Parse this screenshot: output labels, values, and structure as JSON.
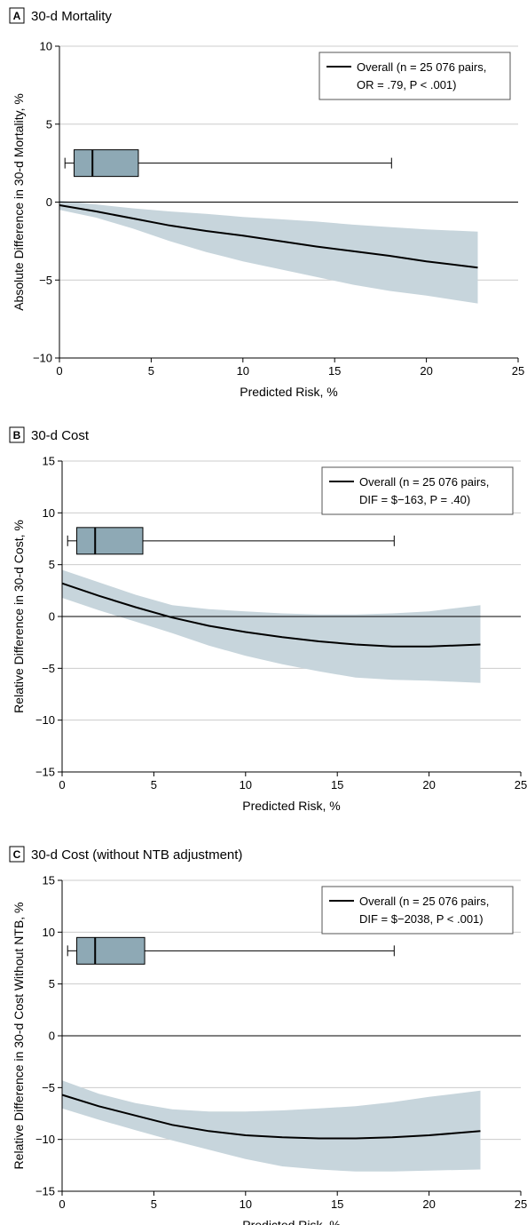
{
  "colors": {
    "band": "#c7d5dc",
    "box": "#8ea9b5",
    "line": "#000000",
    "grid": "#cccccc"
  },
  "chart_data": [
    {
      "type": "line",
      "panel_letter": "A",
      "title": "30-d Mortality",
      "xlabel": "Predicted Risk, %",
      "ylabel": "Absolute Difference in 30-d Mortality, %",
      "xlim": [
        0,
        25
      ],
      "ylim": [
        -10,
        10
      ],
      "xticks": [
        0,
        5,
        10,
        15,
        20,
        25
      ],
      "yticks": [
        -10,
        -5,
        0,
        5,
        10
      ],
      "ytick_labels": [
        "−10",
        "−5",
        "0",
        "5",
        "10"
      ],
      "grid": "horizontal",
      "reference_line": 0,
      "legend": {
        "position": "top-right",
        "lines": [
          "Overall (n = 25 076 pairs,",
          "OR = .79, P < .001)"
        ]
      },
      "series": [
        {
          "x": [
            0,
            2,
            4,
            6,
            8,
            10,
            12,
            14,
            16,
            18,
            20,
            22.8
          ],
          "y": [
            -0.2,
            -0.6,
            -1.05,
            -1.5,
            -1.85,
            -2.15,
            -2.5,
            -2.85,
            -3.15,
            -3.45,
            -3.8,
            -4.2
          ],
          "lower": [
            -0.5,
            -1.0,
            -1.7,
            -2.5,
            -3.2,
            -3.8,
            -4.3,
            -4.8,
            -5.3,
            -5.7,
            -6.0,
            -6.5
          ],
          "upper": [
            0.1,
            -0.15,
            -0.4,
            -0.6,
            -0.75,
            -0.95,
            -1.1,
            -1.25,
            -1.45,
            -1.6,
            -1.75,
            -1.9
          ]
        }
      ],
      "boxplot": {
        "y": 2.5,
        "whisker_low": 0.3,
        "q1": 0.8,
        "median": 1.8,
        "q3": 4.3,
        "whisker_high": 18.1
      }
    },
    {
      "type": "line",
      "panel_letter": "B",
      "title": "30-d Cost",
      "xlabel": "Predicted Risk, %",
      "ylabel": "Relative Difference in 30-d Cost, %",
      "xlim": [
        0,
        25
      ],
      "ylim": [
        -15,
        15
      ],
      "xticks": [
        0,
        5,
        10,
        15,
        20,
        25
      ],
      "yticks": [
        -15,
        -10,
        -5,
        0,
        5,
        10,
        15
      ],
      "ytick_labels": [
        "−15",
        "−10",
        "−5",
        "0",
        "5",
        "10",
        "15"
      ],
      "grid": "horizontal",
      "reference_line": 0,
      "legend": {
        "position": "top-right",
        "lines": [
          "Overall (n = 25 076 pairs,",
          "DIF = $−163, P = .40)"
        ]
      },
      "series": [
        {
          "x": [
            0,
            2,
            4,
            6,
            8,
            10,
            12,
            14,
            16,
            18,
            20,
            22.8
          ],
          "y": [
            3.2,
            2.0,
            0.9,
            -0.1,
            -0.9,
            -1.5,
            -2.0,
            -2.4,
            -2.7,
            -2.9,
            -2.9,
            -2.7
          ],
          "lower": [
            1.8,
            0.6,
            -0.5,
            -1.6,
            -2.8,
            -3.8,
            -4.6,
            -5.3,
            -5.9,
            -6.1,
            -6.2,
            -6.4
          ],
          "upper": [
            4.5,
            3.3,
            2.1,
            1.1,
            0.7,
            0.5,
            0.3,
            0.2,
            0.2,
            0.3,
            0.5,
            1.1
          ]
        }
      ],
      "boxplot": {
        "y": 7.3,
        "whisker_low": 0.3,
        "q1": 0.8,
        "median": 1.8,
        "q3": 4.4,
        "whisker_high": 18.1
      }
    },
    {
      "type": "line",
      "panel_letter": "C",
      "title": "30-d Cost (without NTB adjustment)",
      "xlabel": "Predicted Risk, %",
      "ylabel": "Relative Difference in 30-d Cost Without NTB, %",
      "xlim": [
        0,
        25
      ],
      "ylim": [
        -15,
        15
      ],
      "xticks": [
        0,
        5,
        10,
        15,
        20,
        25
      ],
      "yticks": [
        -15,
        -10,
        -5,
        0,
        5,
        10,
        15
      ],
      "ytick_labels": [
        "−15",
        "−10",
        "−5",
        "0",
        "5",
        "10",
        "15"
      ],
      "grid": "horizontal",
      "reference_line": 0,
      "legend": {
        "position": "top-right",
        "lines": [
          "Overall (n = 25 076 pairs,",
          "DIF = $−2038, P < .001)"
        ]
      },
      "series": [
        {
          "x": [
            0,
            2,
            4,
            6,
            8,
            10,
            12,
            14,
            16,
            18,
            20,
            22.8
          ],
          "y": [
            -5.7,
            -6.8,
            -7.7,
            -8.6,
            -9.2,
            -9.6,
            -9.8,
            -9.9,
            -9.9,
            -9.8,
            -9.6,
            -9.2
          ],
          "lower": [
            -7.0,
            -8.1,
            -9.1,
            -10.1,
            -11.0,
            -11.9,
            -12.6,
            -12.9,
            -13.1,
            -13.1,
            -13.0,
            -12.9
          ],
          "upper": [
            -4.3,
            -5.6,
            -6.5,
            -7.1,
            -7.3,
            -7.3,
            -7.2,
            -7.0,
            -6.8,
            -6.4,
            -5.9,
            -5.3
          ]
        }
      ],
      "boxplot": {
        "y": 8.2,
        "whisker_low": 0.3,
        "q1": 0.8,
        "median": 1.8,
        "q3": 4.5,
        "whisker_high": 18.1
      }
    }
  ]
}
